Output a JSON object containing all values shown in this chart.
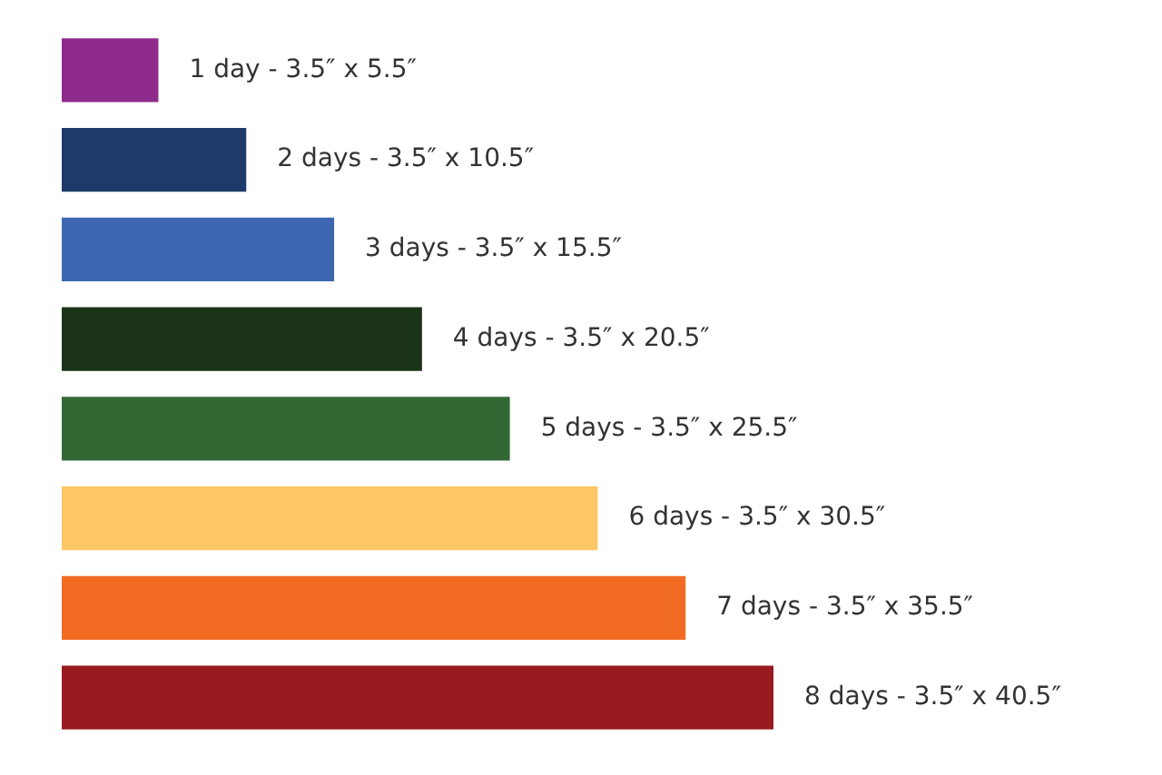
{
  "chart_data": {
    "type": "bar",
    "orientation": "horizontal",
    "categories": [
      null,
      null,
      null,
      null,
      null,
      null,
      null,
      null
    ],
    "values": [
      5.5,
      10.5,
      15.5,
      20.5,
      25.5,
      30.5,
      35.5,
      40.5
    ],
    "colors": [
      "#8e2a8b",
      "#1e3a6a",
      "#3f67b1",
      "#1a3319",
      "#336835",
      "#fdc765",
      "#f26b23",
      "#981b1f"
    ],
    "value_labels": [
      "1 day - 3.5″ x 5.5″",
      "2 days - 3.5″ x 10.5″",
      "3 days - 3.5″ x 15.5″",
      "4 days - 3.5″ x 20.5″",
      "5 days - 3.5″ x 25.5″",
      "6 days - 3.5″ x 30.5″",
      "7 days - 3.5″ x 35.5″",
      "8 days - 3.5″ x 40.5″"
    ],
    "tick_labels": false
  }
}
